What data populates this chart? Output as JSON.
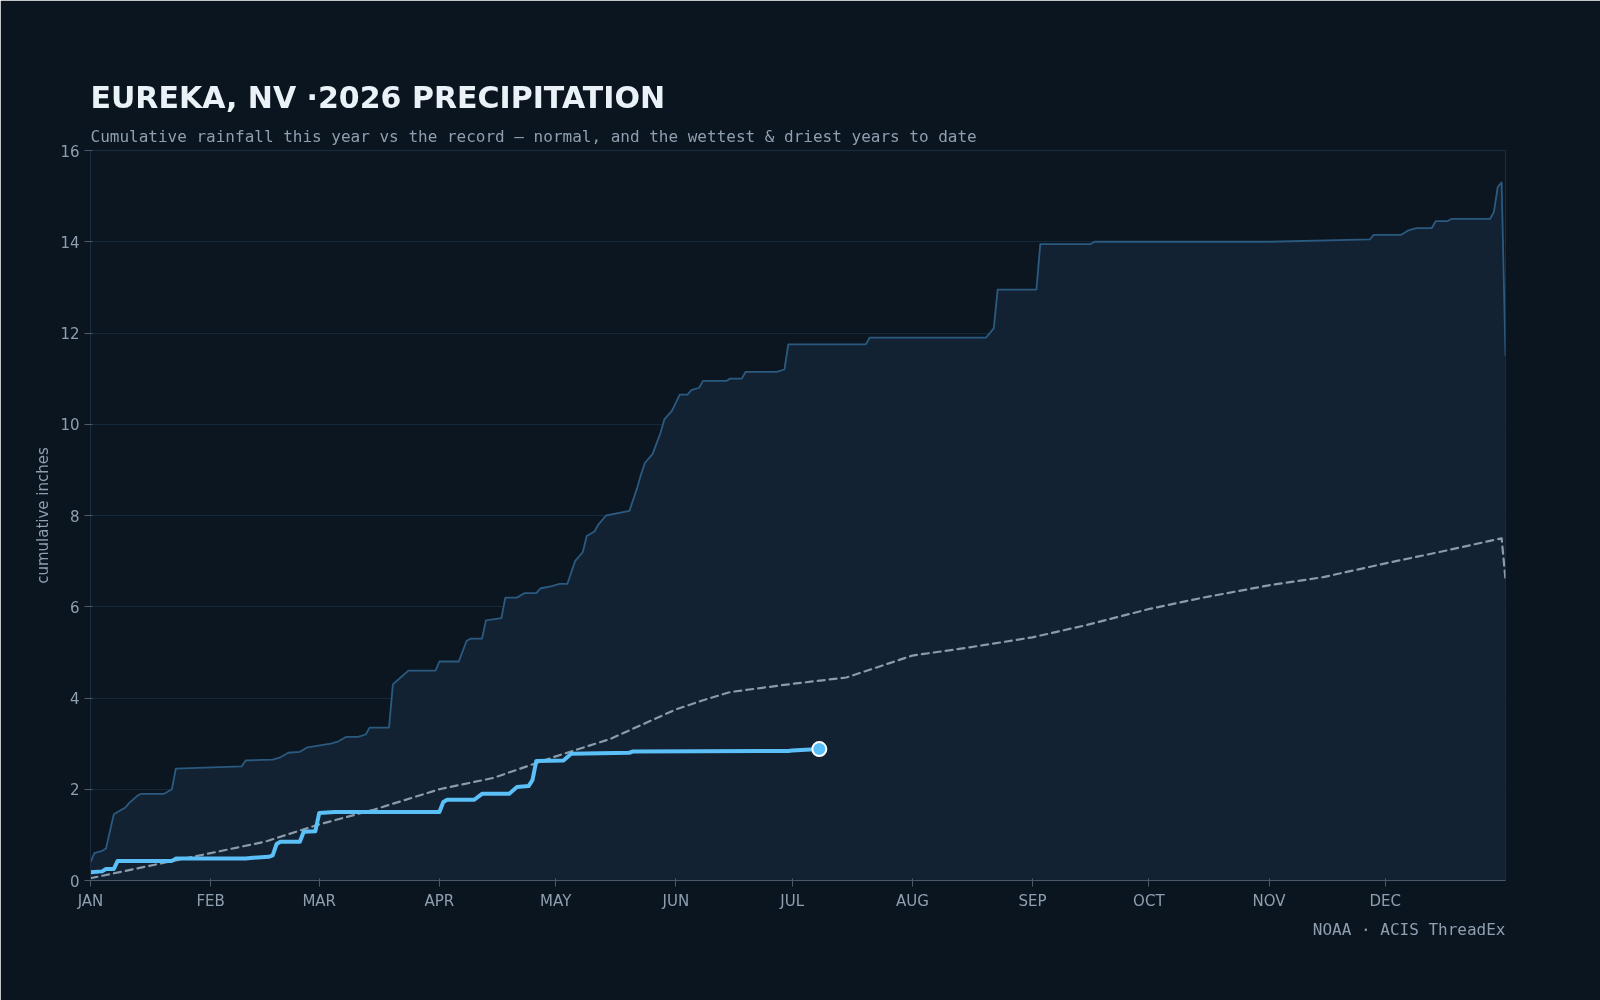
{
  "chart_data": {
    "type": "line",
    "title": "EUREKA, NV ·2026 PRECIPITATION",
    "subtitle": "Cumulative rainfall this year vs the record — normal, and the wettest & driest years to date",
    "ylabel": "cumulative inches",
    "annotations": [
      "NOAA · ACIS ThreadEx"
    ],
    "xlim": [
      "2026-01-01",
      "2027-01-01"
    ],
    "xticks": [
      {
        "value": "2026-01-01",
        "label": "JAN"
      },
      {
        "value": "2026-02-01",
        "label": "FEB"
      },
      {
        "value": "2026-03-01",
        "label": "MAR"
      },
      {
        "value": "2026-04-01",
        "label": "APR"
      },
      {
        "value": "2026-05-01",
        "label": "MAY"
      },
      {
        "value": "2026-06-01",
        "label": "JUN"
      },
      {
        "value": "2026-07-01",
        "label": "JUL"
      },
      {
        "value": "2026-08-01",
        "label": "AUG"
      },
      {
        "value": "2026-09-01",
        "label": "SEP"
      },
      {
        "value": "2026-10-01",
        "label": "OCT"
      },
      {
        "value": "2026-11-01",
        "label": "NOV"
      },
      {
        "value": "2026-12-01",
        "label": "DEC"
      }
    ],
    "ylim": [
      0,
      16
    ],
    "yticks": [
      0,
      2,
      4,
      6,
      8,
      10,
      12,
      14,
      16
    ],
    "grid": "y",
    "series": [
      {
        "type": "area",
        "color": "#2b5a80",
        "x": [
          "2026-01-01",
          "2026-01-02",
          "2026-01-04",
          "2026-01-05",
          "2026-01-07",
          "2026-01-08",
          "2026-01-09",
          "2026-01-10",
          "2026-01-11",
          "2026-01-13",
          "2026-01-14",
          "2026-01-20",
          "2026-01-21",
          "2026-01-22",
          "2026-01-23",
          "2026-02-09",
          "2026-02-10",
          "2026-02-17",
          "2026-02-19",
          "2026-02-21",
          "2026-02-24",
          "2026-02-26",
          "2026-03-04",
          "2026-03-06",
          "2026-03-08",
          "2026-03-11",
          "2026-03-13",
          "2026-03-14",
          "2026-03-19",
          "2026-03-20",
          "2026-03-22",
          "2026-03-24",
          "2026-03-31",
          "2026-04-01",
          "2026-04-06",
          "2026-04-08",
          "2026-04-09",
          "2026-04-12",
          "2026-04-13",
          "2026-04-17",
          "2026-04-18",
          "2026-04-21",
          "2026-04-23",
          "2026-04-26",
          "2026-04-27",
          "2026-04-30",
          "2026-05-02",
          "2026-05-04",
          "2026-05-06",
          "2026-05-08",
          "2026-05-09",
          "2026-05-11",
          "2026-05-12",
          "2026-05-14",
          "2026-05-20",
          "2026-05-22",
          "2026-05-23",
          "2026-05-24",
          "2026-05-26",
          "2026-05-28",
          "2026-05-29",
          "2026-05-31",
          "2026-06-02",
          "2026-06-04",
          "2026-06-05",
          "2026-06-07",
          "2026-06-08",
          "2026-06-14",
          "2026-06-15",
          "2026-06-18",
          "2026-06-19",
          "2026-06-27",
          "2026-06-29",
          "2026-06-30",
          "2026-07-20",
          "2026-07-21",
          "2026-08-20",
          "2026-08-22",
          "2026-08-23",
          "2026-09-02",
          "2026-09-03",
          "2026-09-16",
          "2026-09-17",
          "2026-11-01",
          "2026-11-27",
          "2026-11-28",
          "2026-12-05",
          "2026-12-07",
          "2026-12-09",
          "2026-12-13",
          "2026-12-14",
          "2026-12-17",
          "2026-12-18",
          "2026-12-28",
          "2026-12-29",
          "2026-12-30",
          "2026-12-31",
          "2027-01-01"
        ],
        "values": [
          0.4,
          0.6,
          0.65,
          0.7,
          1.45,
          1.5,
          1.55,
          1.6,
          1.7,
          1.85,
          1.9,
          1.9,
          1.95,
          2.0,
          2.45,
          2.5,
          2.63,
          2.65,
          2.7,
          2.8,
          2.82,
          2.92,
          3.0,
          3.05,
          3.15,
          3.15,
          3.2,
          3.35,
          3.35,
          4.3,
          4.45,
          4.6,
          4.6,
          4.8,
          4.8,
          5.25,
          5.3,
          5.3,
          5.7,
          5.75,
          6.2,
          6.2,
          6.3,
          6.3,
          6.4,
          6.45,
          6.5,
          6.5,
          7.0,
          7.2,
          7.55,
          7.65,
          7.8,
          8.0,
          8.1,
          8.6,
          8.9,
          9.15,
          9.35,
          9.8,
          10.1,
          10.3,
          10.65,
          10.65,
          10.75,
          10.8,
          10.95,
          10.95,
          11.0,
          11.0,
          11.15,
          11.15,
          11.2,
          11.75,
          11.75,
          11.9,
          11.9,
          12.1,
          12.95,
          12.95,
          13.95,
          13.95,
          14.0,
          14.0,
          14.05,
          14.15,
          14.15,
          14.25,
          14.3,
          14.3,
          14.45,
          14.45,
          14.5,
          14.5,
          14.65,
          15.2,
          15.3,
          11.5
        ]
      },
      {
        "color": "#8a9bab",
        "line_style": "dashed",
        "x": [
          "2026-01-01",
          "2026-01-15",
          "2026-02-01",
          "2026-02-15",
          "2026-03-01",
          "2026-03-15",
          "2026-04-01",
          "2026-04-15",
          "2026-05-01",
          "2026-05-15",
          "2026-06-01",
          "2026-06-08",
          "2026-06-15",
          "2026-07-01",
          "2026-07-15",
          "2026-08-01",
          "2026-08-15",
          "2026-09-01",
          "2026-09-15",
          "2026-10-01",
          "2026-10-15",
          "2026-11-01",
          "2026-11-15",
          "2026-12-01",
          "2026-12-15",
          "2026-12-31",
          "2027-01-01"
        ],
        "values": [
          0.05,
          0.3,
          0.6,
          0.85,
          1.23,
          1.55,
          2.0,
          2.25,
          2.72,
          3.1,
          3.75,
          3.95,
          4.13,
          4.31,
          4.45,
          4.93,
          5.1,
          5.33,
          5.6,
          5.95,
          6.2,
          6.47,
          6.65,
          6.95,
          7.2,
          7.5,
          6.6
        ]
      },
      {
        "color": "#5bc0f8",
        "line_style": "solid",
        "x": [
          "2026-01-01",
          "2026-01-04",
          "2026-01-05",
          "2026-01-07",
          "2026-01-08",
          "2026-01-22",
          "2026-01-23",
          "2026-02-10",
          "2026-02-12",
          "2026-02-16",
          "2026-02-17",
          "2026-02-18",
          "2026-02-19",
          "2026-02-24",
          "2026-02-25",
          "2026-02-28",
          "2026-03-01",
          "2026-03-05",
          "2026-04-01",
          "2026-04-02",
          "2026-04-03",
          "2026-04-10",
          "2026-04-12",
          "2026-04-19",
          "2026-04-21",
          "2026-04-24",
          "2026-04-25",
          "2026-04-26",
          "2026-05-03",
          "2026-05-05",
          "2026-05-20",
          "2026-05-21",
          "2026-06-30",
          "2026-07-01",
          "2026-07-08"
        ],
        "values": [
          0.18,
          0.2,
          0.25,
          0.25,
          0.43,
          0.43,
          0.48,
          0.48,
          0.5,
          0.52,
          0.55,
          0.8,
          0.85,
          0.85,
          1.07,
          1.08,
          1.48,
          1.5,
          1.5,
          1.72,
          1.77,
          1.77,
          1.9,
          1.9,
          2.05,
          2.07,
          2.2,
          2.62,
          2.63,
          2.78,
          2.8,
          2.83,
          2.84,
          2.85,
          2.88
        ]
      },
      {
        "type": "scatter",
        "color": "#5bc0f8",
        "marker": "circle",
        "x": [
          "2026-07-08"
        ],
        "values": [
          2.88
        ]
      }
    ]
  }
}
